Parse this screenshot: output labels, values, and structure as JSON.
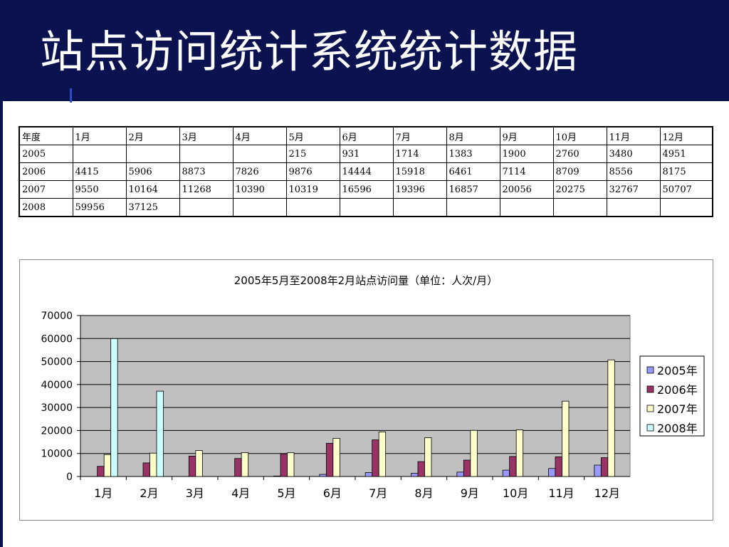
{
  "slide": {
    "title": "站点访问统计系统统计数据"
  },
  "table": {
    "header": [
      "年度",
      "1月",
      "2月",
      "3月",
      "4月",
      "5月",
      "6月",
      "7月",
      "8月",
      "9月",
      "10月",
      "11月",
      "12月"
    ],
    "rows": [
      [
        "2005",
        "",
        "",
        "",
        "",
        "215",
        "931",
        "1714",
        "1383",
        "1900",
        "2760",
        "3480",
        "4951"
      ],
      [
        "2006",
        "4415",
        "5906",
        "8873",
        "7826",
        "9876",
        "14444",
        "15918",
        "6461",
        "7114",
        "8709",
        "8556",
        "8175"
      ],
      [
        "2007",
        "9550",
        "10164",
        "11268",
        "10390",
        "10319",
        "16596",
        "19396",
        "16857",
        "20056",
        "20275",
        "32767",
        "50707"
      ],
      [
        "2008",
        "59956",
        "37125",
        "",
        "",
        "",
        "",
        "",
        "",
        "",
        "",
        "",
        ""
      ]
    ]
  },
  "chart_data": {
    "type": "bar",
    "title": "2005年5月至2008年2月站点访问量（单位：人次/月）",
    "categories": [
      "1月",
      "2月",
      "3月",
      "4月",
      "5月",
      "6月",
      "7月",
      "8月",
      "9月",
      "10月",
      "11月",
      "12月"
    ],
    "series": [
      {
        "name": "2005年",
        "color": "#9999ff",
        "values": [
          null,
          null,
          null,
          null,
          215,
          931,
          1714,
          1383,
          1900,
          2760,
          3480,
          4951
        ]
      },
      {
        "name": "2006年",
        "color": "#993366",
        "values": [
          4415,
          5906,
          8873,
          7826,
          9876,
          14444,
          15918,
          6461,
          7114,
          8709,
          8556,
          8175
        ]
      },
      {
        "name": "2007年",
        "color": "#ffffcc",
        "values": [
          9550,
          10164,
          11268,
          10390,
          10319,
          16596,
          19396,
          16857,
          20056,
          20275,
          32767,
          50707
        ]
      },
      {
        "name": "2008年",
        "color": "#ccffff",
        "values": [
          59956,
          37125,
          null,
          null,
          null,
          null,
          null,
          null,
          null,
          null,
          null,
          null
        ]
      }
    ],
    "ylim": [
      0,
      70000
    ],
    "yticks": [
      "0",
      "10000",
      "20000",
      "30000",
      "40000",
      "50000",
      "60000",
      "70000"
    ],
    "grid": true,
    "plot_background": "#c0c0c0",
    "legend_position": "right"
  },
  "colors": {
    "header_bg": "#0a1250",
    "title_text": "#ffffff"
  }
}
